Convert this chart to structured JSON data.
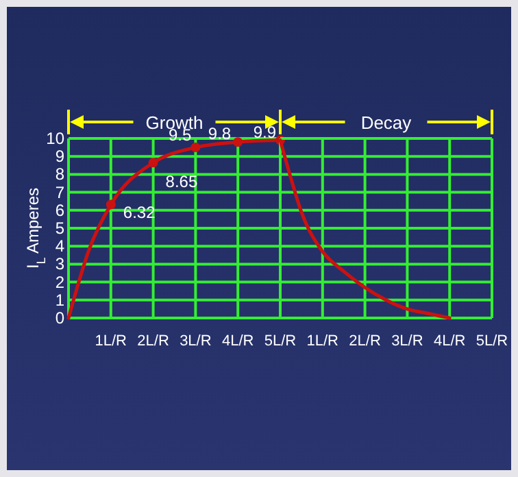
{
  "chart_data": [
    {
      "type": "line",
      "title": "Growth",
      "ylabel": "I$_{L}$ Amperes",
      "xlim": [
        0,
        5
      ],
      "xticks": [
        {
          "value": 0,
          "label": null
        },
        {
          "value": 1,
          "label": "1L/R"
        },
        {
          "value": 2,
          "label": "2L/R"
        },
        {
          "value": 3,
          "label": "3L/R"
        },
        {
          "value": 4,
          "label": "4L/R"
        },
        {
          "value": 5,
          "label": "5L/R"
        }
      ],
      "ylim": [
        0,
        10
      ],
      "yticks": [
        0,
        1,
        2,
        3,
        4,
        5,
        6,
        7,
        8,
        9,
        10
      ],
      "grid": true,
      "marker": "circle",
      "series": [
        {
          "color": "#cc1111",
          "x": [
            0,
            0.5,
            1,
            2,
            3,
            4,
            5
          ],
          "values": [
            0,
            3.9,
            6.32,
            8.65,
            9.5,
            9.8,
            9.9
          ],
          "value_labels": [
            null,
            null,
            "6.32",
            "8.65",
            "9.5",
            "9.8",
            "9.9"
          ]
        }
      ]
    },
    {
      "type": "line",
      "title": "Decay",
      "xlim": [
        0,
        5
      ],
      "xticks": [
        {
          "value": 0,
          "label": null
        },
        {
          "value": 1,
          "label": "1L/R"
        },
        {
          "value": 2,
          "label": "2L/R"
        },
        {
          "value": 3,
          "label": "3L/R"
        },
        {
          "value": 4,
          "label": "4L/R"
        },
        {
          "value": 5,
          "label": "5L/R"
        }
      ],
      "ylim": [
        0,
        10
      ],
      "yticks": [
        0,
        1,
        2,
        3,
        4,
        5,
        6,
        7,
        8,
        9,
        10
      ],
      "grid": true,
      "tick_labels": "x",
      "series": [
        {
          "color": "#cc1111",
          "x": [
            0,
            0.25,
            0.5,
            1,
            1.5,
            2,
            2.5,
            3,
            3.5,
            4
          ],
          "values": [
            9.9,
            7.8,
            5.9,
            3.7,
            2.6,
            1.7,
            1.0,
            0.5,
            0.25,
            0
          ]
        }
      ]
    }
  ]
}
